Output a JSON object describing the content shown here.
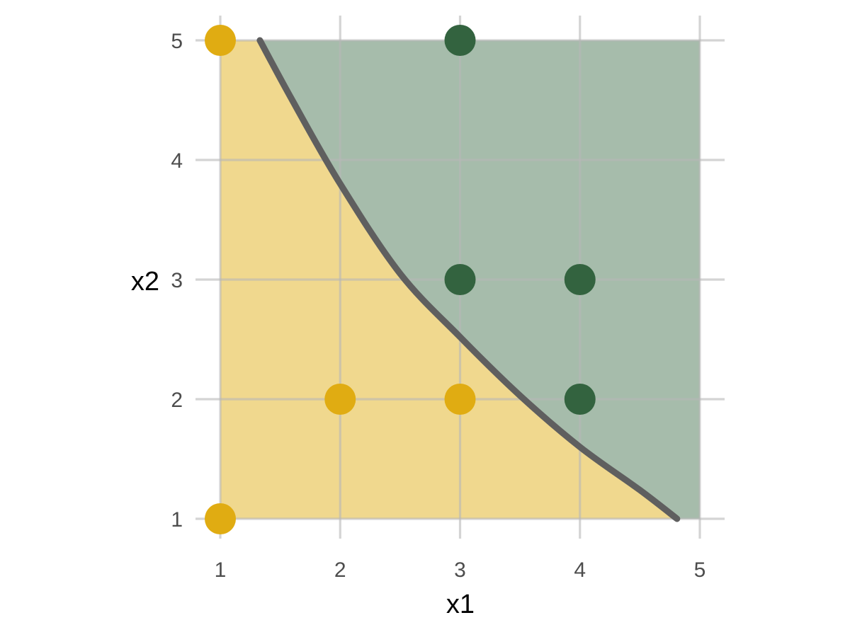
{
  "chart_data": {
    "type": "scatter",
    "title": "",
    "xlabel": "x1",
    "ylabel": "x2",
    "xlim": [
      1,
      5
    ],
    "ylim": [
      1,
      5
    ],
    "x_ticks": [
      1,
      2,
      3,
      4,
      5
    ],
    "y_ticks": [
      1,
      2,
      3,
      4,
      5
    ],
    "grid": true,
    "legend": "none",
    "colors": {
      "class_a": "#E0AC12",
      "class_b": "#33633F",
      "region_a": "#F0D88E",
      "region_b": "#A6BCAB",
      "boundary": "#5F5F5F",
      "grid": "#D9D9D9"
    },
    "points": [
      {
        "x": 1,
        "y": 5,
        "class": "a"
      },
      {
        "x": 1,
        "y": 1,
        "class": "a"
      },
      {
        "x": 2,
        "y": 2,
        "class": "a"
      },
      {
        "x": 3,
        "y": 2,
        "class": "a"
      },
      {
        "x": 3,
        "y": 5,
        "class": "b"
      },
      {
        "x": 3,
        "y": 3,
        "class": "b"
      },
      {
        "x": 4,
        "y": 3,
        "class": "b"
      },
      {
        "x": 4,
        "y": 2,
        "class": "b"
      }
    ],
    "decision_boundary": {
      "x": [
        1.33,
        1.6,
        2.0,
        2.5,
        3.0,
        3.5,
        4.0,
        4.5,
        4.81
      ],
      "y": [
        5.0,
        4.5,
        3.8,
        3.05,
        2.52,
        2.03,
        1.6,
        1.24,
        1.0
      ]
    }
  }
}
